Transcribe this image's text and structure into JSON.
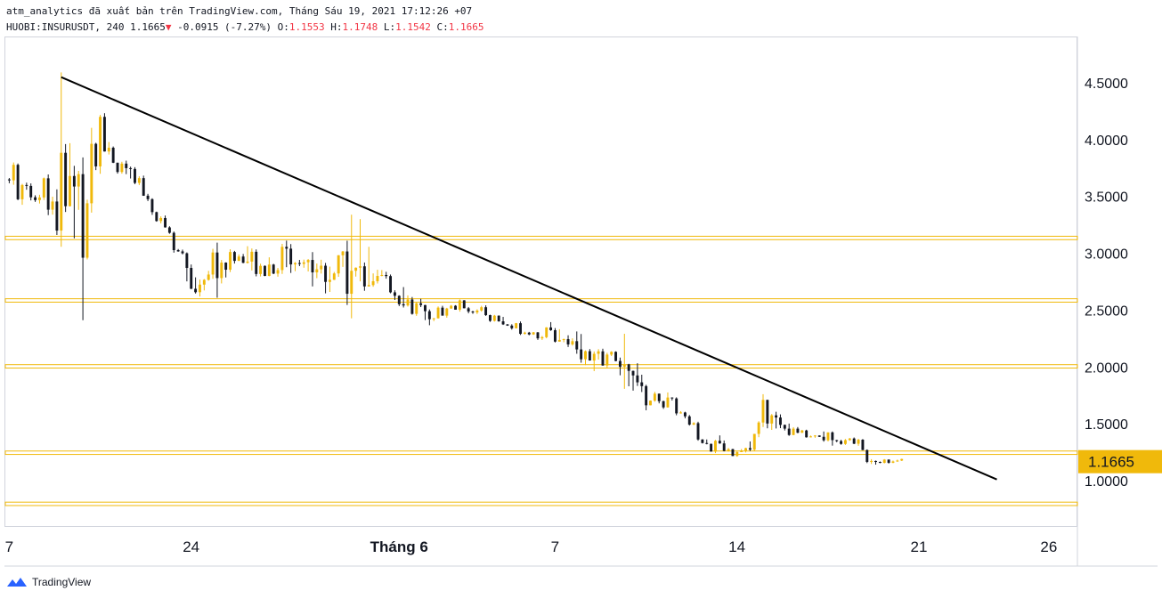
{
  "header": {
    "line1": "atm_analytics đã xuất bản trên TradingView.com, Tháng Sáu 19, 2021 17:12:26 +07",
    "symbol": "HUOBI:INSURUSDT, 240",
    "last": "1.1665",
    "change_arrow": "▼",
    "change": "-0.0915 (-7.27%)",
    "o_label": "O:",
    "o": "1.1553",
    "h_label": "H:",
    "h": "1.1748",
    "l_label": "L:",
    "l": "1.1542",
    "c_label": "C:",
    "c": "1.1665"
  },
  "footer": {
    "brand": "TradingView"
  },
  "colors": {
    "up": "#f0b90b",
    "down": "#131722",
    "level": "#f0b90b",
    "last_tag": "#f0b90b",
    "trendline": "#000000"
  },
  "chart_data": {
    "type": "candlestick",
    "title": "",
    "xlabel": "",
    "ylabel": "",
    "ylim": [
      0.6,
      4.9
    ],
    "x_ticks": [
      {
        "label": "7",
        "day": 0
      },
      {
        "label": "24",
        "day": 7
      },
      {
        "label": "Tháng 6",
        "day": 15,
        "bold": true
      },
      {
        "label": "7",
        "day": 21
      },
      {
        "label": "14",
        "day": 28
      },
      {
        "label": "21",
        "day": 35
      },
      {
        "label": "26",
        "day": 40
      }
    ],
    "y_ticks": [
      "4.5000",
      "4.0000",
      "3.5000",
      "3.0000",
      "2.5000",
      "2.0000",
      "1.5000",
      "1.0000"
    ],
    "last_price": {
      "label": "1.1665",
      "value": 1.1665
    },
    "levels": [
      {
        "low": 3.12,
        "high": 3.15
      },
      {
        "low": 2.57,
        "high": 2.6
      },
      {
        "low": 1.99,
        "high": 2.02
      },
      {
        "low": 1.23,
        "high": 1.26
      },
      {
        "low": 0.78,
        "high": 0.81
      }
    ],
    "trendline": {
      "start": {
        "day": 2.0,
        "price": 4.55
      },
      "end": {
        "day": 38.0,
        "price": 1.01
      }
    },
    "candle_anchors": [
      [
        0.0,
        3.65,
        0.18,
        0.2
      ],
      [
        1.5,
        3.55,
        0.18,
        0.2
      ],
      [
        2.3,
        3.3,
        0.95,
        1.1
      ],
      [
        3.3,
        4.0,
        0.55,
        0.6
      ],
      [
        3.8,
        3.95,
        0.18,
        0.15
      ],
      [
        4.8,
        3.6,
        0.12,
        0.1
      ],
      [
        5.8,
        3.35,
        0.1,
        0.1
      ],
      [
        6.5,
        3.05,
        0.12,
        0.1
      ],
      [
        7.0,
        2.7,
        0.12,
        0.15
      ],
      [
        7.8,
        2.9,
        0.15,
        0.25
      ],
      [
        8.8,
        2.95,
        0.1,
        0.15
      ],
      [
        10.0,
        2.9,
        0.1,
        0.12
      ],
      [
        10.8,
        3.0,
        0.12,
        0.4
      ],
      [
        11.5,
        2.9,
        0.08,
        0.1
      ],
      [
        13.0,
        2.82,
        0.22,
        0.8
      ],
      [
        14.0,
        2.78,
        0.1,
        0.28
      ],
      [
        15.0,
        2.65,
        0.1,
        0.2
      ],
      [
        16.0,
        2.45,
        0.06,
        0.08
      ],
      [
        17.3,
        2.55,
        0.05,
        0.08
      ],
      [
        18.3,
        2.47,
        0.04,
        0.05
      ],
      [
        19.3,
        2.35,
        0.04,
        0.05
      ],
      [
        20.8,
        2.28,
        0.05,
        0.06
      ],
      [
        21.8,
        2.22,
        0.08,
        0.18
      ],
      [
        22.3,
        2.05,
        0.08,
        0.1
      ],
      [
        23.2,
        2.1,
        0.06,
        0.1
      ],
      [
        24.0,
        1.9,
        0.08,
        0.7
      ],
      [
        24.5,
        1.72,
        0.08,
        0.08
      ],
      [
        25.5,
        1.68,
        0.05,
        0.08
      ],
      [
        26.2,
        1.5,
        0.05,
        0.06
      ],
      [
        27.1,
        1.3,
        0.08,
        0.06
      ],
      [
        27.9,
        1.25,
        0.03,
        0.05
      ],
      [
        28.6,
        1.32,
        0.05,
        0.08
      ],
      [
        29.0,
        1.6,
        0.15,
        0.25
      ],
      [
        29.4,
        1.55,
        0.1,
        0.2
      ],
      [
        29.8,
        1.45,
        0.06,
        0.08
      ],
      [
        30.7,
        1.4,
        0.04,
        0.05
      ],
      [
        31.7,
        1.38,
        0.04,
        0.05
      ],
      [
        32.6,
        1.35,
        0.04,
        0.05
      ],
      [
        33.0,
        1.22,
        0.04,
        0.05
      ],
      [
        34.0,
        1.17,
        0.03,
        0.04
      ],
      [
        34.5,
        1.1665,
        0.02,
        0.02
      ]
    ],
    "candle_spacing_days": 0.1667,
    "volatility": 0.035,
    "seed": 7,
    "hidden_axis_range_days": [
      -0.15,
      41.1
    ]
  }
}
